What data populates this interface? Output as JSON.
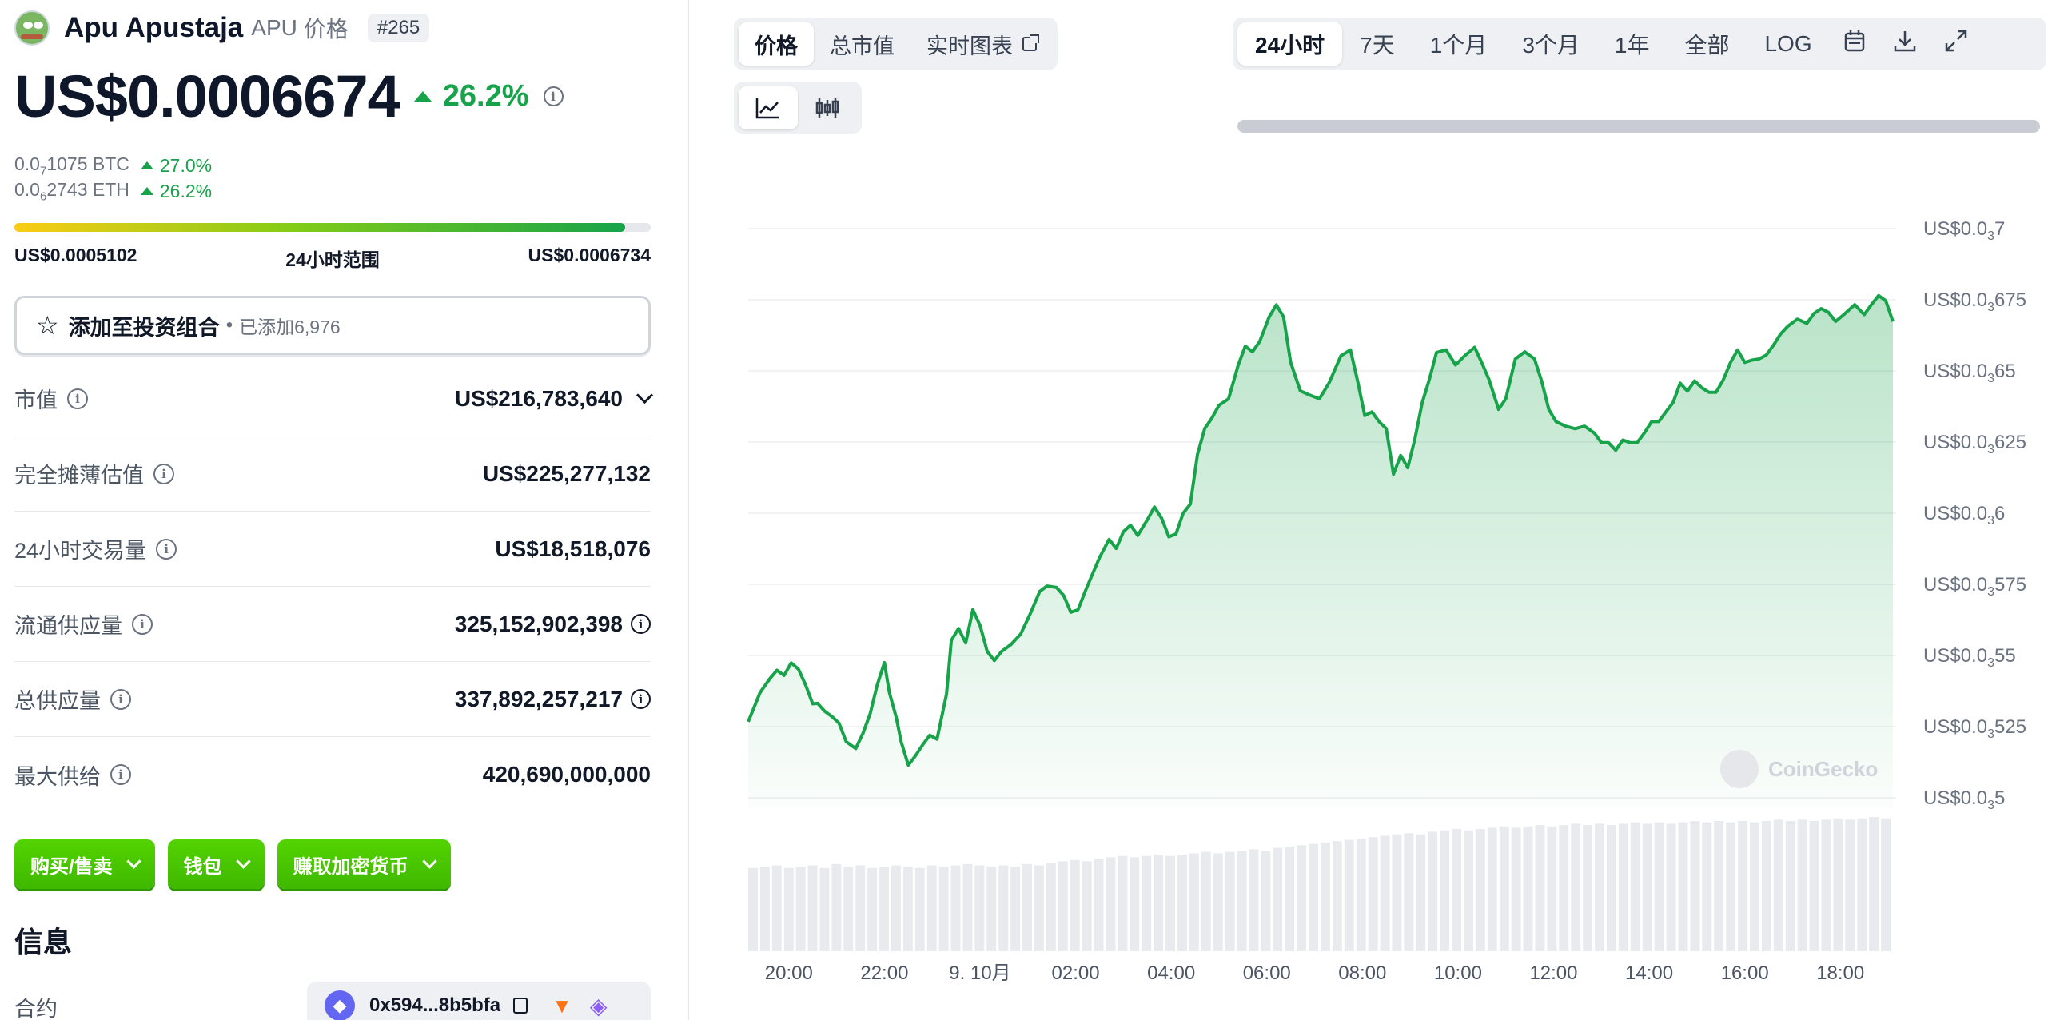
{
  "coin": {
    "name": "Apu Apustaja",
    "symbol": "APU",
    "symbol_suffix": "价格",
    "rank": "#265",
    "price": "US$0.0006674",
    "change_24h": "26.2%",
    "btc_prefix": "0.0",
    "btc_sub": "7",
    "btc_rest": "1075 BTC",
    "btc_change": "27.0%",
    "eth_prefix": "0.0",
    "eth_sub": "6",
    "eth_rest": "2743 ETH",
    "eth_change": "26.2%",
    "range_low": "US$0.0005102",
    "range_label": "24小时范围",
    "range_high": "US$0.0006734",
    "range_fill_fraction": 0.96
  },
  "portfolio": {
    "label": "添加至投资组合",
    "dot": "•",
    "count": "已添加6,976"
  },
  "stats": [
    {
      "label": "市值",
      "value": "US$216,783,640"
    },
    {
      "label": "完全摊薄估值",
      "value": "US$225,277,132"
    },
    {
      "label": "24小时交易量",
      "value": "US$18,518,076"
    },
    {
      "label": "流通供应量",
      "value": "325,152,902,398"
    },
    {
      "label": "总供应量",
      "value": "337,892,257,217"
    },
    {
      "label": "最大供给",
      "value": "420,690,000,000"
    }
  ],
  "actions": {
    "buy_sell": "购买/售卖",
    "wallet": "钱包",
    "earn": "赚取加密货币"
  },
  "info": {
    "title": "信息",
    "contract_label": "合约",
    "contract_address": "0x594...8b5bfa"
  },
  "chart_tabs": {
    "price": "价格",
    "market_cap": "总市值",
    "live_chart": "实时图表"
  },
  "ranges": [
    "24小时",
    "7天",
    "1个月",
    "3个月",
    "1年",
    "全部",
    "LOG"
  ],
  "icons": {
    "line_chart": "line-chart-icon",
    "candle_chart": "candlestick-icon",
    "calendar": "calendar-icon",
    "download": "download-icon",
    "fullscreen": "expand-icon"
  },
  "colors": {
    "positive": "#16a34a",
    "button_green": "#4bcc00",
    "line": "#16a34a"
  },
  "chart_data": {
    "type": "area",
    "watermark": "CoinGecko",
    "y_tick_labels": [
      {
        "value": 0.0007,
        "pre": "US$0.0",
        "sub": "3",
        "post": "7"
      },
      {
        "value": 0.000675,
        "pre": "US$0.0",
        "sub": "3",
        "post": "675"
      },
      {
        "value": 0.00065,
        "pre": "US$0.0",
        "sub": "3",
        "post": "65"
      },
      {
        "value": 0.000625,
        "pre": "US$0.0",
        "sub": "3",
        "post": "625"
      },
      {
        "value": 0.0006,
        "pre": "US$0.0",
        "sub": "3",
        "post": "6"
      },
      {
        "value": 0.000575,
        "pre": "US$0.0",
        "sub": "3",
        "post": "575"
      },
      {
        "value": 0.00055,
        "pre": "US$0.0",
        "sub": "3",
        "post": "55"
      },
      {
        "value": 0.000525,
        "pre": "US$0.0",
        "sub": "3",
        "post": "525"
      },
      {
        "value": 0.0005,
        "pre": "US$0.0",
        "sub": "3",
        "post": "5"
      }
    ],
    "ylim": [
      0.0005,
      0.0007
    ],
    "x_tick_labels": [
      "20:00",
      "22:00",
      "9. 10月",
      "02:00",
      "04:00",
      "06:00",
      "08:00",
      "10:00",
      "12:00",
      "14:00",
      "16:00",
      "18:00"
    ],
    "x_tick_hours": [
      20,
      22,
      24,
      26,
      28,
      30,
      32,
      34,
      36,
      38,
      40,
      42
    ],
    "x_range_hours": [
      19.15,
      43.1
    ],
    "price_series": [
      [
        19.15,
        0.0005267
      ],
      [
        19.4,
        0.000537
      ],
      [
        19.6,
        0.0005418
      ],
      [
        19.75,
        0.0005448
      ],
      [
        19.9,
        0.000543
      ],
      [
        20.05,
        0.0005474
      ],
      [
        20.2,
        0.0005452
      ],
      [
        20.35,
        0.0005397
      ],
      [
        20.5,
        0.000533
      ],
      [
        20.6,
        0.0005332
      ],
      [
        20.75,
        0.0005304
      ],
      [
        20.9,
        0.0005286
      ],
      [
        21.05,
        0.0005262
      ],
      [
        21.2,
        0.0005197
      ],
      [
        21.4,
        0.0005173
      ],
      [
        21.55,
        0.0005226
      ],
      [
        21.7,
        0.0005295
      ],
      [
        21.85,
        0.0005397
      ],
      [
        22.0,
        0.0005475
      ],
      [
        22.1,
        0.0005372
      ],
      [
        22.25,
        0.000528
      ],
      [
        22.35,
        0.0005197
      ],
      [
        22.5,
        0.0005115
      ],
      [
        22.65,
        0.0005148
      ],
      [
        22.8,
        0.0005186
      ],
      [
        22.95,
        0.000522
      ],
      [
        23.1,
        0.0005206
      ],
      [
        23.3,
        0.0005365
      ],
      [
        23.4,
        0.0005553
      ],
      [
        23.55,
        0.0005595
      ],
      [
        23.7,
        0.0005544
      ],
      [
        23.85,
        0.0005661
      ],
      [
        24.0,
        0.0005606
      ],
      [
        24.15,
        0.0005514
      ],
      [
        24.3,
        0.0005482
      ],
      [
        24.45,
        0.0005514
      ],
      [
        24.65,
        0.0005539
      ],
      [
        24.85,
        0.0005575
      ],
      [
        25.05,
        0.0005647
      ],
      [
        25.25,
        0.0005725
      ],
      [
        25.4,
        0.0005744
      ],
      [
        25.6,
        0.0005739
      ],
      [
        25.75,
        0.0005711
      ],
      [
        25.9,
        0.0005652
      ],
      [
        26.05,
        0.0005661
      ],
      [
        26.2,
        0.0005725
      ],
      [
        26.35,
        0.0005785
      ],
      [
        26.5,
        0.0005844
      ],
      [
        26.7,
        0.0005908
      ],
      [
        26.85,
        0.0005876
      ],
      [
        27.0,
        0.0005935
      ],
      [
        27.15,
        0.0005958
      ],
      [
        27.3,
        0.0005922
      ],
      [
        27.5,
        0.0005977
      ],
      [
        27.65,
        0.0006022
      ],
      [
        27.8,
        0.0005982
      ],
      [
        27.95,
        0.0005917
      ],
      [
        28.1,
        0.0005927
      ],
      [
        28.25,
        0.0006
      ],
      [
        28.4,
        0.0006032
      ],
      [
        28.55,
        0.0006206
      ],
      [
        28.7,
        0.0006297
      ],
      [
        28.85,
        0.0006334
      ],
      [
        29.0,
        0.0006379
      ],
      [
        29.2,
        0.0006402
      ],
      [
        29.4,
        0.000652
      ],
      [
        29.55,
        0.0006587
      ],
      [
        29.7,
        0.0006567
      ],
      [
        29.85,
        0.0006603
      ],
      [
        30.05,
        0.000669
      ],
      [
        30.2,
        0.0006732
      ],
      [
        30.35,
        0.000669
      ],
      [
        30.5,
        0.000653
      ],
      [
        30.7,
        0.000643
      ],
      [
        30.9,
        0.0006415
      ],
      [
        31.1,
        0.0006402
      ],
      [
        31.3,
        0.0006457
      ],
      [
        31.55,
        0.0006553
      ],
      [
        31.75,
        0.0006574
      ],
      [
        31.9,
        0.0006465
      ],
      [
        32.05,
        0.0006343
      ],
      [
        32.2,
        0.0006356
      ],
      [
        32.35,
        0.0006322
      ],
      [
        32.5,
        0.0006297
      ],
      [
        32.65,
        0.0006137
      ],
      [
        32.8,
        0.0006203
      ],
      [
        32.95,
        0.000616
      ],
      [
        33.1,
        0.0006262
      ],
      [
        33.25,
        0.0006388
      ],
      [
        33.4,
        0.0006469
      ],
      [
        33.55,
        0.0006565
      ],
      [
        33.75,
        0.0006574
      ],
      [
        33.95,
        0.0006521
      ],
      [
        34.15,
        0.0006555
      ],
      [
        34.35,
        0.0006583
      ],
      [
        34.5,
        0.0006528
      ],
      [
        34.65,
        0.0006469
      ],
      [
        34.85,
        0.0006365
      ],
      [
        35.0,
        0.0006402
      ],
      [
        35.2,
        0.0006542
      ],
      [
        35.4,
        0.0006567
      ],
      [
        35.6,
        0.0006542
      ],
      [
        35.75,
        0.0006465
      ],
      [
        35.9,
        0.0006365
      ],
      [
        36.05,
        0.0006322
      ],
      [
        36.25,
        0.0006306
      ],
      [
        36.45,
        0.0006297
      ],
      [
        36.65,
        0.0006306
      ],
      [
        36.85,
        0.0006282
      ],
      [
        37.0,
        0.0006248
      ],
      [
        37.15,
        0.0006248
      ],
      [
        37.3,
        0.0006221
      ],
      [
        37.45,
        0.0006257
      ],
      [
        37.6,
        0.0006248
      ],
      [
        37.75,
        0.0006248
      ],
      [
        37.9,
        0.0006282
      ],
      [
        38.05,
        0.0006322
      ],
      [
        38.2,
        0.0006322
      ],
      [
        38.35,
        0.0006356
      ],
      [
        38.5,
        0.0006389
      ],
      [
        38.65,
        0.0006457
      ],
      [
        38.8,
        0.0006429
      ],
      [
        38.95,
        0.0006465
      ],
      [
        39.1,
        0.0006441
      ],
      [
        39.25,
        0.0006425
      ],
      [
        39.4,
        0.0006425
      ],
      [
        39.55,
        0.0006468
      ],
      [
        39.7,
        0.0006529
      ],
      [
        39.85,
        0.0006574
      ],
      [
        40.0,
        0.000653
      ],
      [
        40.15,
        0.0006538
      ],
      [
        40.3,
        0.0006542
      ],
      [
        40.45,
        0.0006556
      ],
      [
        40.6,
        0.000659
      ],
      [
        40.75,
        0.000663
      ],
      [
        40.9,
        0.0006657
      ],
      [
        41.1,
        0.0006682
      ],
      [
        41.3,
        0.0006667
      ],
      [
        41.45,
        0.0006702
      ],
      [
        41.6,
        0.0006719
      ],
      [
        41.75,
        0.0006706
      ],
      [
        41.9,
        0.0006674
      ],
      [
        42.1,
        0.0006702
      ],
      [
        42.3,
        0.0006733
      ],
      [
        42.5,
        0.0006698
      ],
      [
        42.65,
        0.0006733
      ],
      [
        42.8,
        0.0006765
      ],
      [
        42.95,
        0.0006747
      ],
      [
        43.1,
        0.0006674
      ]
    ],
    "volume_series_relative": [
      0.62,
      0.63,
      0.64,
      0.62,
      0.63,
      0.64,
      0.62,
      0.65,
      0.63,
      0.64,
      0.62,
      0.63,
      0.64,
      0.63,
      0.62,
      0.64,
      0.63,
      0.64,
      0.65,
      0.64,
      0.63,
      0.64,
      0.63,
      0.65,
      0.64,
      0.66,
      0.67,
      0.68,
      0.67,
      0.69,
      0.7,
      0.71,
      0.7,
      0.71,
      0.72,
      0.71,
      0.72,
      0.73,
      0.74,
      0.73,
      0.74,
      0.75,
      0.76,
      0.75,
      0.77,
      0.78,
      0.79,
      0.8,
      0.81,
      0.82,
      0.83,
      0.84,
      0.85,
      0.86,
      0.87,
      0.88,
      0.87,
      0.89,
      0.9,
      0.91,
      0.9,
      0.91,
      0.92,
      0.93,
      0.92,
      0.93,
      0.94,
      0.93,
      0.94,
      0.95,
      0.94,
      0.95,
      0.94,
      0.95,
      0.96,
      0.95,
      0.96,
      0.95,
      0.96,
      0.97,
      0.96,
      0.97,
      0.96,
      0.97,
      0.96,
      0.97,
      0.98,
      0.97,
      0.98,
      0.97,
      0.98,
      0.99,
      0.98,
      0.99,
      1.0,
      0.99
    ]
  }
}
